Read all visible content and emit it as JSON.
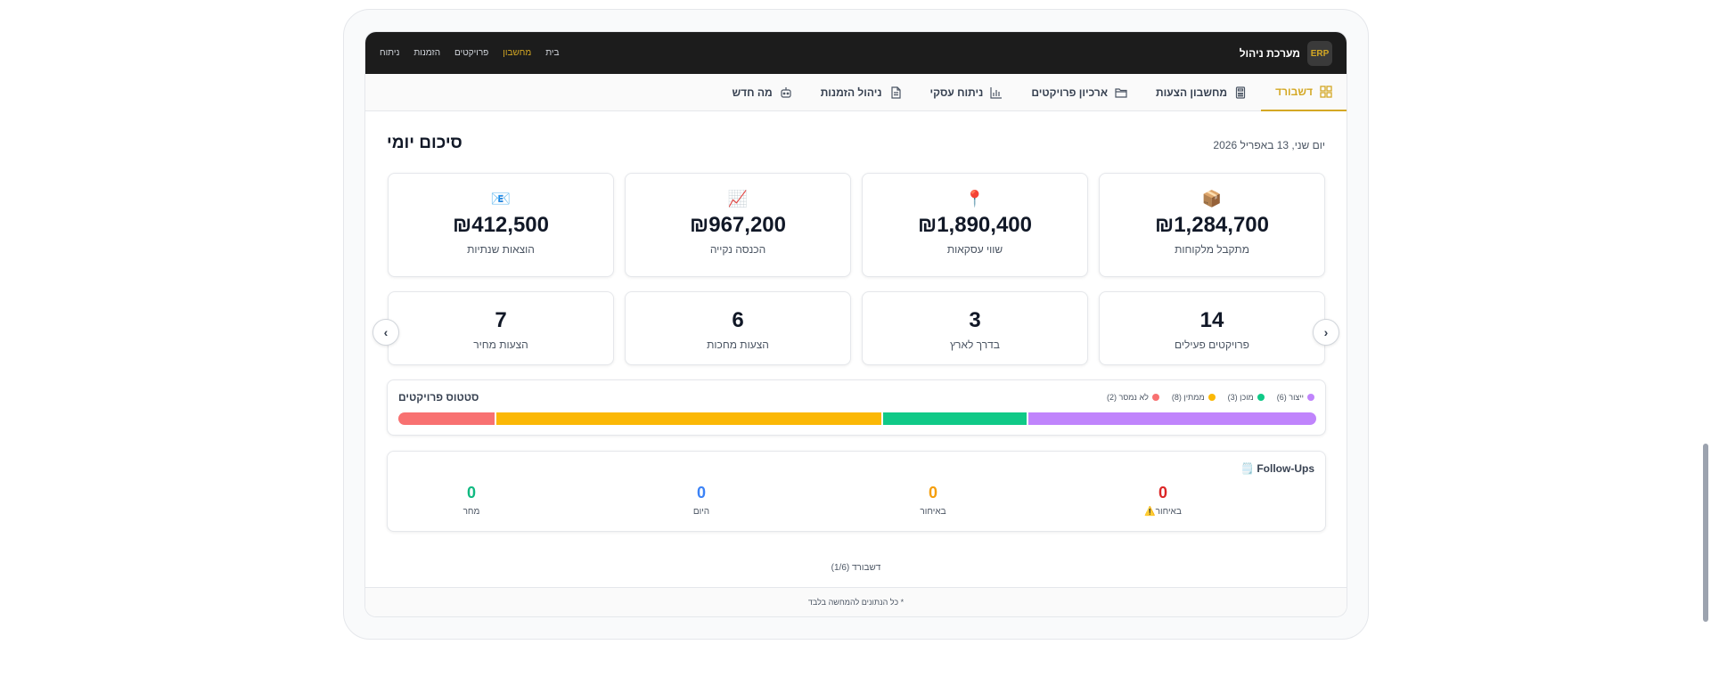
{
  "header": {
    "logo": "ERP",
    "system_name": "מערכת ניהול",
    "nav": [
      {
        "label": "בית",
        "active": false
      },
      {
        "label": "מחשבון",
        "active": true
      },
      {
        "label": "פרויקטים",
        "active": false
      },
      {
        "label": "הזמנות",
        "active": false
      },
      {
        "label": "ניתוח",
        "active": false
      }
    ]
  },
  "tabs": [
    {
      "label": "דשבורד",
      "icon": "dashboard-grid-icon",
      "active": true
    },
    {
      "label": "מחשבון הצעות",
      "icon": "calculator-icon",
      "active": false
    },
    {
      "label": "ארכיון פרויקטים",
      "icon": "folder-icon",
      "active": false
    },
    {
      "label": "ניתוח עסקי",
      "icon": "bar-chart-icon",
      "active": false
    },
    {
      "label": "ניהול הזמנות",
      "icon": "document-icon",
      "active": false
    },
    {
      "label": "מה חדש",
      "icon": "robot-icon",
      "active": false
    }
  ],
  "summary": {
    "date": "יום שני, 13 באפריל 2026",
    "title": "סיכום יומי"
  },
  "kpis": [
    {
      "emoji": "📦",
      "value": "₪1,284,700",
      "label": "מתקבל מלקוחות"
    },
    {
      "emoji": "📍",
      "value": "₪1,890,400",
      "label": "שווי עסקאות"
    },
    {
      "emoji": "📈",
      "value": "₪967,200",
      "label": "הכנסה נקייה"
    },
    {
      "emoji": "📧",
      "value": "₪412,500",
      "label": "הוצאות שנתיות"
    }
  ],
  "counts": [
    {
      "value": "14",
      "label": "פרויקטים פעילים"
    },
    {
      "value": "3",
      "label": "בדרך לארץ"
    },
    {
      "value": "6",
      "label": "הצעות מחכות"
    },
    {
      "value": "7",
      "label": "הצעות מחיר"
    }
  ],
  "nav_arrows": {
    "prev": "‹",
    "next": "›"
  },
  "project_status": {
    "title": "סטטוס פרויקטים",
    "segments": [
      {
        "label": "ייצור (6)",
        "count": 6,
        "color": "#c084fc"
      },
      {
        "label": "מוכן (3)",
        "count": 3,
        "color": "#10c987"
      },
      {
        "label": "ממתין (8)",
        "count": 8,
        "color": "#fbb806"
      },
      {
        "label": "לא נמסר (2)",
        "count": 2,
        "color": "#f87171"
      }
    ]
  },
  "followups": {
    "icon": "🗒️",
    "title": "Follow-Ups",
    "items": [
      {
        "value": "0",
        "label": "באיחור",
        "warning": "⚠️",
        "color": "#dc2626"
      },
      {
        "value": "0",
        "label": "באיחור",
        "warning": "",
        "color": "#f59e0b"
      },
      {
        "value": "0",
        "label": "היום",
        "warning": "",
        "color": "#3b82f6"
      },
      {
        "value": "0",
        "label": "מחר",
        "warning": "",
        "color": "#10b981"
      }
    ]
  },
  "pager": "דשבורד (1/6)",
  "footer": "* כל הנתונים להמחשה בלבד"
}
